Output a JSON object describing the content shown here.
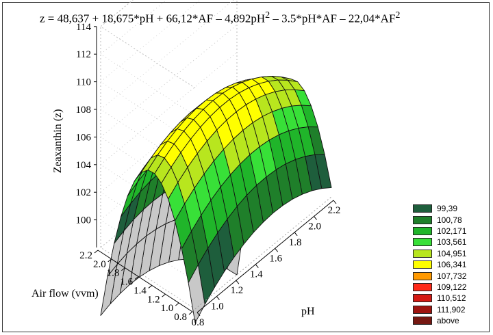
{
  "chart_data": {
    "type": "surface3d",
    "title": "z = 48,637 + 18,675*pH + 66,12*AF – 4,892pH² – 3.5*pH*AF – 22,04*AF²",
    "equation": {
      "prefix": "z = 48,637 + 18,675*pH + 66,12*AF – 4,892pH",
      "sup1": "2",
      "middle": " – 3.5*pH*AF – 22,04*AF",
      "sup2": "2"
    },
    "coefficients": {
      "const": 48.637,
      "pH": 18.675,
      "AF": 66.12,
      "pH2": -4.892,
      "pHAF": -3.5,
      "AF2": -22.04
    },
    "x": {
      "label": "pH",
      "range": [
        0.8,
        2.2
      ],
      "ticks": [
        "0.8",
        "1.0",
        "1.2",
        "1.4",
        "1.6",
        "1.8",
        "2.0",
        "2.2"
      ]
    },
    "y": {
      "label": "Air flow (vvm)",
      "range": [
        0.8,
        2.2
      ],
      "ticks": [
        "0.8",
        "1.0",
        "1.2",
        "1.4",
        "1.6",
        "1.8",
        "2.0",
        "2.2"
      ]
    },
    "z": {
      "label": "Zeaxanthin (z)",
      "range": [
        98,
        114
      ],
      "ticks": [
        "100",
        "102",
        "104",
        "106",
        "108",
        "110",
        "112",
        "114"
      ]
    },
    "legend": [
      {
        "label": "99,39",
        "color": "#1e5e3c"
      },
      {
        "label": "100,78",
        "color": "#1f7f2a"
      },
      {
        "label": "102,171",
        "color": "#20b52a"
      },
      {
        "label": "103,561",
        "color": "#38e038"
      },
      {
        "label": "104,951",
        "color": "#b8e61e"
      },
      {
        "label": "106,341",
        "color": "#ffff00"
      },
      {
        "label": "107,732",
        "color": "#ff9900"
      },
      {
        "label": "109,122",
        "color": "#ff2a1a"
      },
      {
        "label": "110,512",
        "color": "#d41a14"
      },
      {
        "label": "111,902",
        "color": "#9e1410"
      },
      {
        "label": "above",
        "color": "#761812"
      }
    ],
    "below_color": "#c8c8c8",
    "legend_position": "right"
  }
}
